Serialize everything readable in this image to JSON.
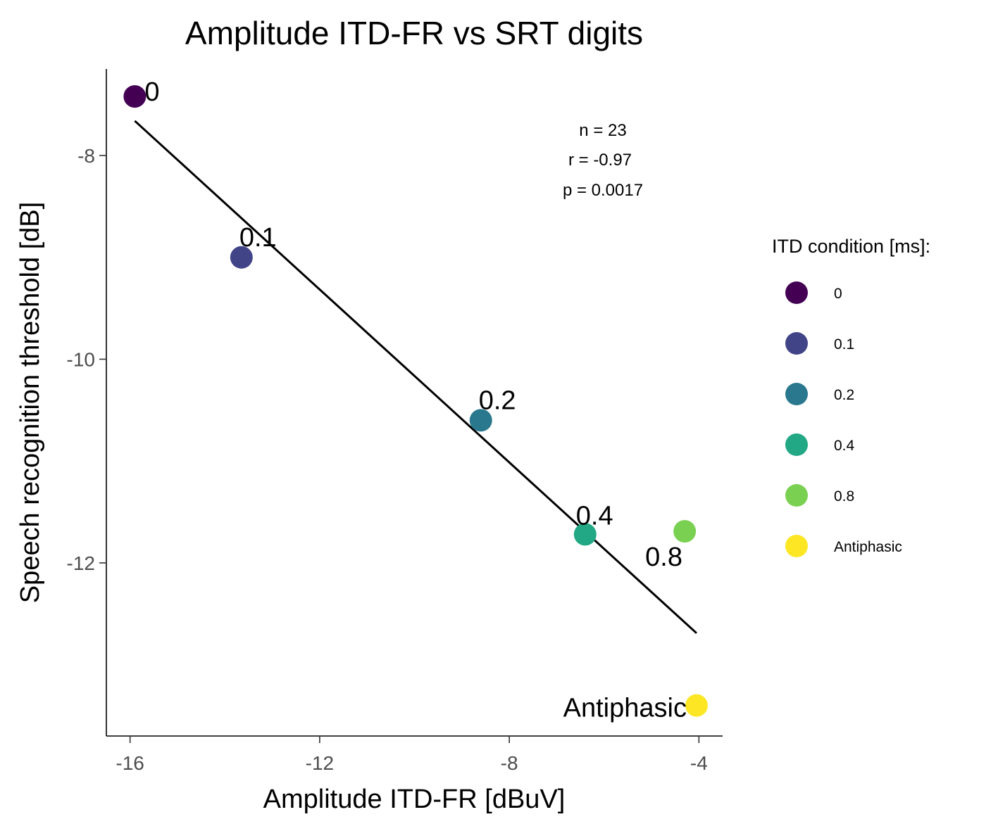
{
  "chart_data": {
    "type": "scatter",
    "title": "Amplitude ITD-FR vs SRT digits",
    "xlabel": "Amplitude ITD-FR [dBuV]",
    "ylabel": "Speech recognition threshold [dB]",
    "xlim": [
      -16.5,
      -3.5
    ],
    "ylim": [
      -13.7,
      -7.15
    ],
    "xticks": [
      -16,
      -12,
      -8,
      -4
    ],
    "xtick_labels": [
      "-16",
      "-12",
      "-8",
      "-4"
    ],
    "yticks": [
      -8,
      -10,
      -12
    ],
    "ytick_labels": [
      "-8",
      "-10",
      "-12"
    ],
    "points": [
      {
        "label": "0",
        "x": -15.9,
        "y": -7.42,
        "color": "#440154"
      },
      {
        "label": "0.1",
        "x": -13.65,
        "y": -9.0,
        "color": "#414487"
      },
      {
        "label": "0.2",
        "x": -8.6,
        "y": -10.6,
        "color": "#2A788E"
      },
      {
        "label": "0.4",
        "x": -6.4,
        "y": -11.72,
        "color": "#22A884"
      },
      {
        "label": "0.8",
        "x": -4.3,
        "y": -11.69,
        "color": "#7AD151"
      },
      {
        "label": "Antiphasic",
        "x": -4.05,
        "y": -13.4,
        "color": "#FDE725"
      }
    ],
    "regression_line": {
      "x": [
        -15.9,
        -4.05
      ],
      "y": [
        -7.66,
        -12.69
      ]
    },
    "stats": {
      "n": "n = 23",
      "r": "r = -0.97",
      "p": "p = 0.0017"
    },
    "legend": {
      "title": "ITD condition [ms]:",
      "position": "right",
      "entries": [
        {
          "label": "0",
          "color": "#440154"
        },
        {
          "label": "0.1",
          "color": "#414487"
        },
        {
          "label": "0.2",
          "color": "#2A788E"
        },
        {
          "label": "0.4",
          "color": "#22A884"
        },
        {
          "label": "0.8",
          "color": "#7AD151"
        },
        {
          "label": "Antiphasic",
          "color": "#FDE725"
        }
      ]
    }
  }
}
